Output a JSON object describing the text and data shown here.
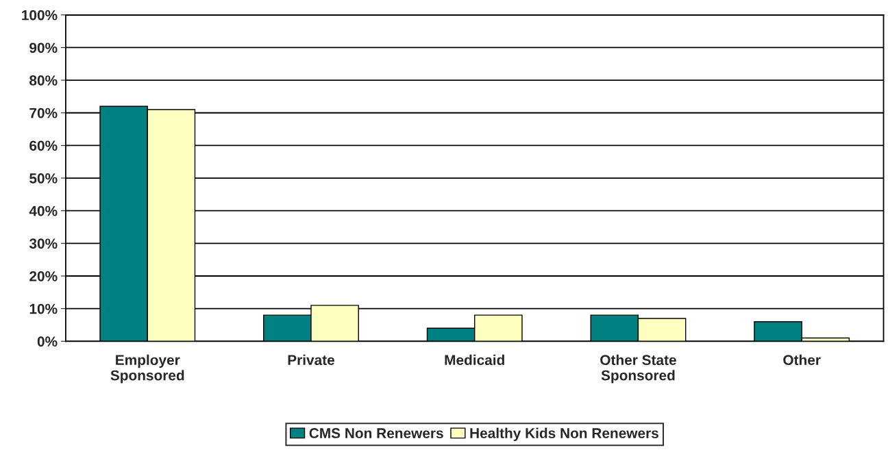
{
  "chart_data": {
    "type": "bar",
    "categories": [
      "Employer\nSponsored",
      "Private",
      "Medicaid",
      "Other State\nSponsored",
      "Other"
    ],
    "series": [
      {
        "name": "CMS Non Renewers",
        "color": "#008080",
        "values": [
          72,
          8,
          4,
          8,
          6
        ]
      },
      {
        "name": "Healthy Kids Non Renewers",
        "color": "#ffffc0",
        "values": [
          71,
          11,
          8,
          7,
          1
        ]
      }
    ],
    "ylim": [
      0,
      100
    ],
    "yticks": [
      {
        "value": 0,
        "label": "0%"
      },
      {
        "value": 10,
        "label": "10%"
      },
      {
        "value": 20,
        "label": "20%"
      },
      {
        "value": 30,
        "label": "30%"
      },
      {
        "value": 40,
        "label": "40%"
      },
      {
        "value": 50,
        "label": "50%"
      },
      {
        "value": 60,
        "label": "60%"
      },
      {
        "value": 70,
        "label": "70%"
      },
      {
        "value": 80,
        "label": "80%"
      },
      {
        "value": 90,
        "label": "90%"
      },
      {
        "value": 100,
        "label": "100%"
      }
    ],
    "grid": "y",
    "legend": "bottom"
  }
}
